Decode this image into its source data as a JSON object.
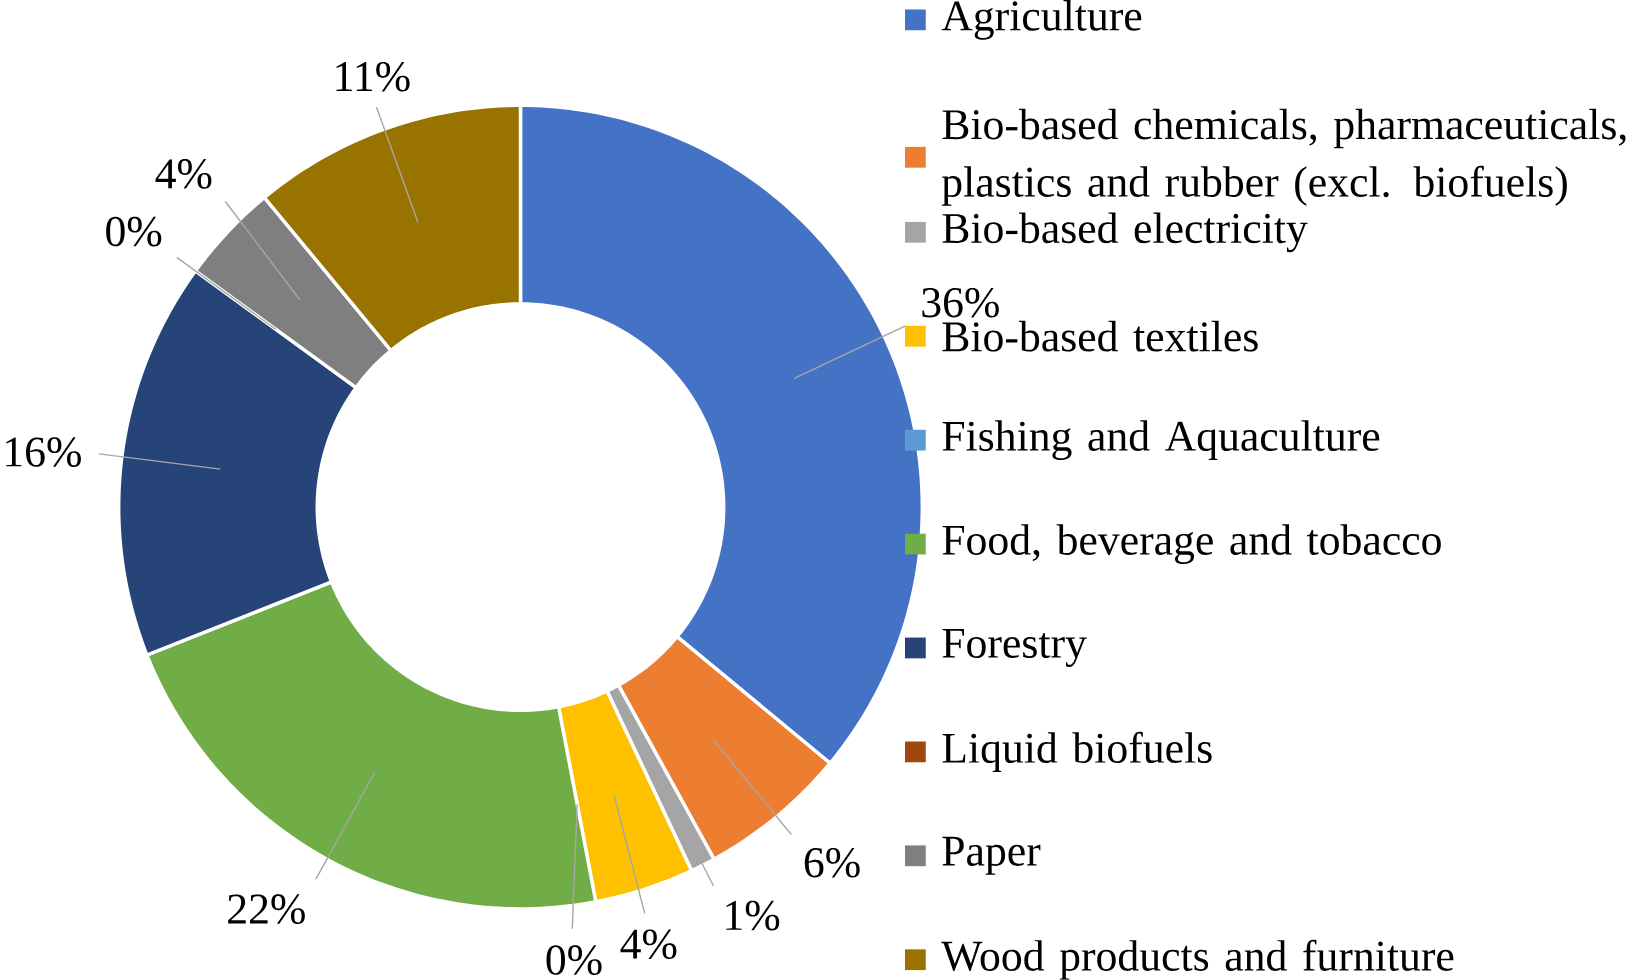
{
  "chart_data": {
    "type": "donut",
    "categories": [
      "Agriculture",
      "Bio-based chemicals, pharmaceuticals, plastics and rubber (excl. biofuels)",
      "Bio-based electricity",
      "Bio-based textiles",
      "Fishing and Aquaculture",
      "Food, beverage and tobacco",
      "Forestry",
      "Liquid biofuels",
      "Paper",
      "Wood products and furniture"
    ],
    "values": [
      36,
      6,
      1,
      4,
      0,
      22,
      16,
      0,
      4,
      11
    ],
    "value_labels": [
      "36%",
      "6%",
      "1%",
      "4%",
      "0%",
      "22%",
      "16%",
      "0%",
      "4%",
      "11%"
    ],
    "colors": [
      "#4472c4",
      "#ed7d31",
      "#a5a5a5",
      "#ffc000",
      "#5b9bd5",
      "#70ad47",
      "#264478",
      "#9e480e",
      "#7f7f7f",
      "#997300"
    ],
    "legend": "right"
  }
}
